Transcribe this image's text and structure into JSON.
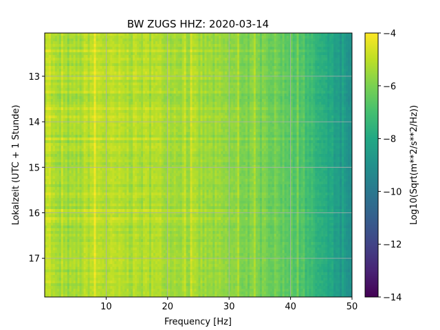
{
  "chart_data": {
    "type": "heatmap",
    "title": "BW ZUGS  HHZ: 2020-03-14",
    "xlabel": "Frequency [Hz]",
    "ylabel": "Lokalzeit (UTC + 1 Stunde)",
    "xlim": [
      0,
      50
    ],
    "ylim": [
      17.85,
      12.05
    ],
    "y_inverted": true,
    "xticks": [
      10,
      20,
      30,
      40,
      50
    ],
    "xtick_labels": [
      "10",
      "20",
      "30",
      "40",
      "50"
    ],
    "yticks": [
      13,
      14,
      15,
      16,
      17
    ],
    "ytick_labels": [
      "13",
      "14",
      "15",
      "16",
      "17"
    ],
    "grid": true,
    "colormap": "viridis",
    "colorbar": {
      "label": "Log10(Sqrt(m**2/s**2/Hz))",
      "range": [
        -14,
        -4
      ],
      "ticks": [
        -4,
        -6,
        -8,
        -10,
        -12,
        -14
      ],
      "tick_labels": [
        "−4",
        "−6",
        "−8",
        "−10",
        "−12",
        "−14"
      ]
    },
    "value_profile_by_frequency": {
      "x": [
        0.5,
        2,
        5,
        8,
        10,
        15,
        20,
        25,
        30,
        35,
        38,
        40,
        42,
        44,
        46,
        48,
        50
      ],
      "values": [
        -4.8,
        -5.6,
        -5.5,
        -5.0,
        -5.2,
        -5.3,
        -5.3,
        -5.5,
        -5.8,
        -6.1,
        -6.3,
        -6.6,
        -7.0,
        -7.5,
        -8.1,
        -8.7,
        -9.2
      ]
    }
  }
}
